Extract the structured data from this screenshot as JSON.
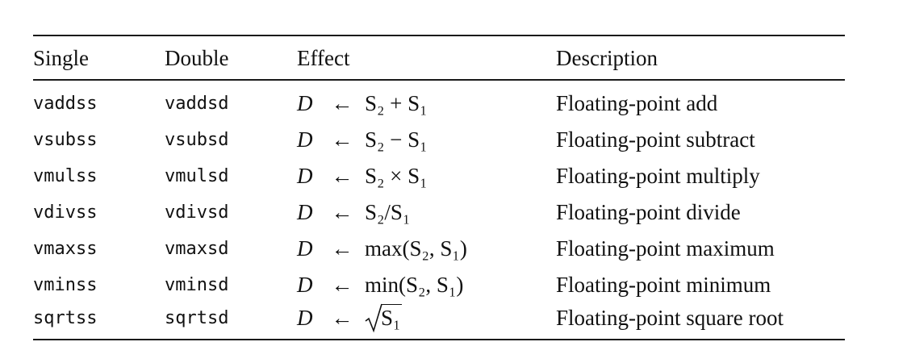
{
  "headers": {
    "single": "Single",
    "double": "Double",
    "effect": "Effect",
    "description": "Description"
  },
  "rows": [
    {
      "single": "vaddss",
      "double": "vaddsd",
      "dest": "D",
      "arrow": "←",
      "expr": "S₂ + S₁",
      "description": "Floating-point add"
    },
    {
      "single": "vsubss",
      "double": "vsubsd",
      "dest": "D",
      "arrow": "←",
      "expr": "S₂ − S₁",
      "description": "Floating-point subtract"
    },
    {
      "single": "vmulss",
      "double": "vmulsd",
      "dest": "D",
      "arrow": "←",
      "expr": "S₂ × S₁",
      "description": "Floating-point multiply"
    },
    {
      "single": "vdivss",
      "double": "vdivsd",
      "dest": "D",
      "arrow": "←",
      "expr": "S₂/S₁",
      "description": "Floating-point divide"
    },
    {
      "single": "vmaxss",
      "double": "vmaxsd",
      "dest": "D",
      "arrow": "←",
      "expr": "max(S₂, S₁)",
      "description": "Floating-point maximum"
    },
    {
      "single": "vminss",
      "double": "vminsd",
      "dest": "D",
      "arrow": "←",
      "expr": "min(S₂, S₁)",
      "description": "Floating-point minimum"
    },
    {
      "single": "sqrtss",
      "double": "sqrtsd",
      "dest": "D",
      "arrow": "←",
      "expr": "S₁",
      "description": "Floating-point square root"
    }
  ]
}
